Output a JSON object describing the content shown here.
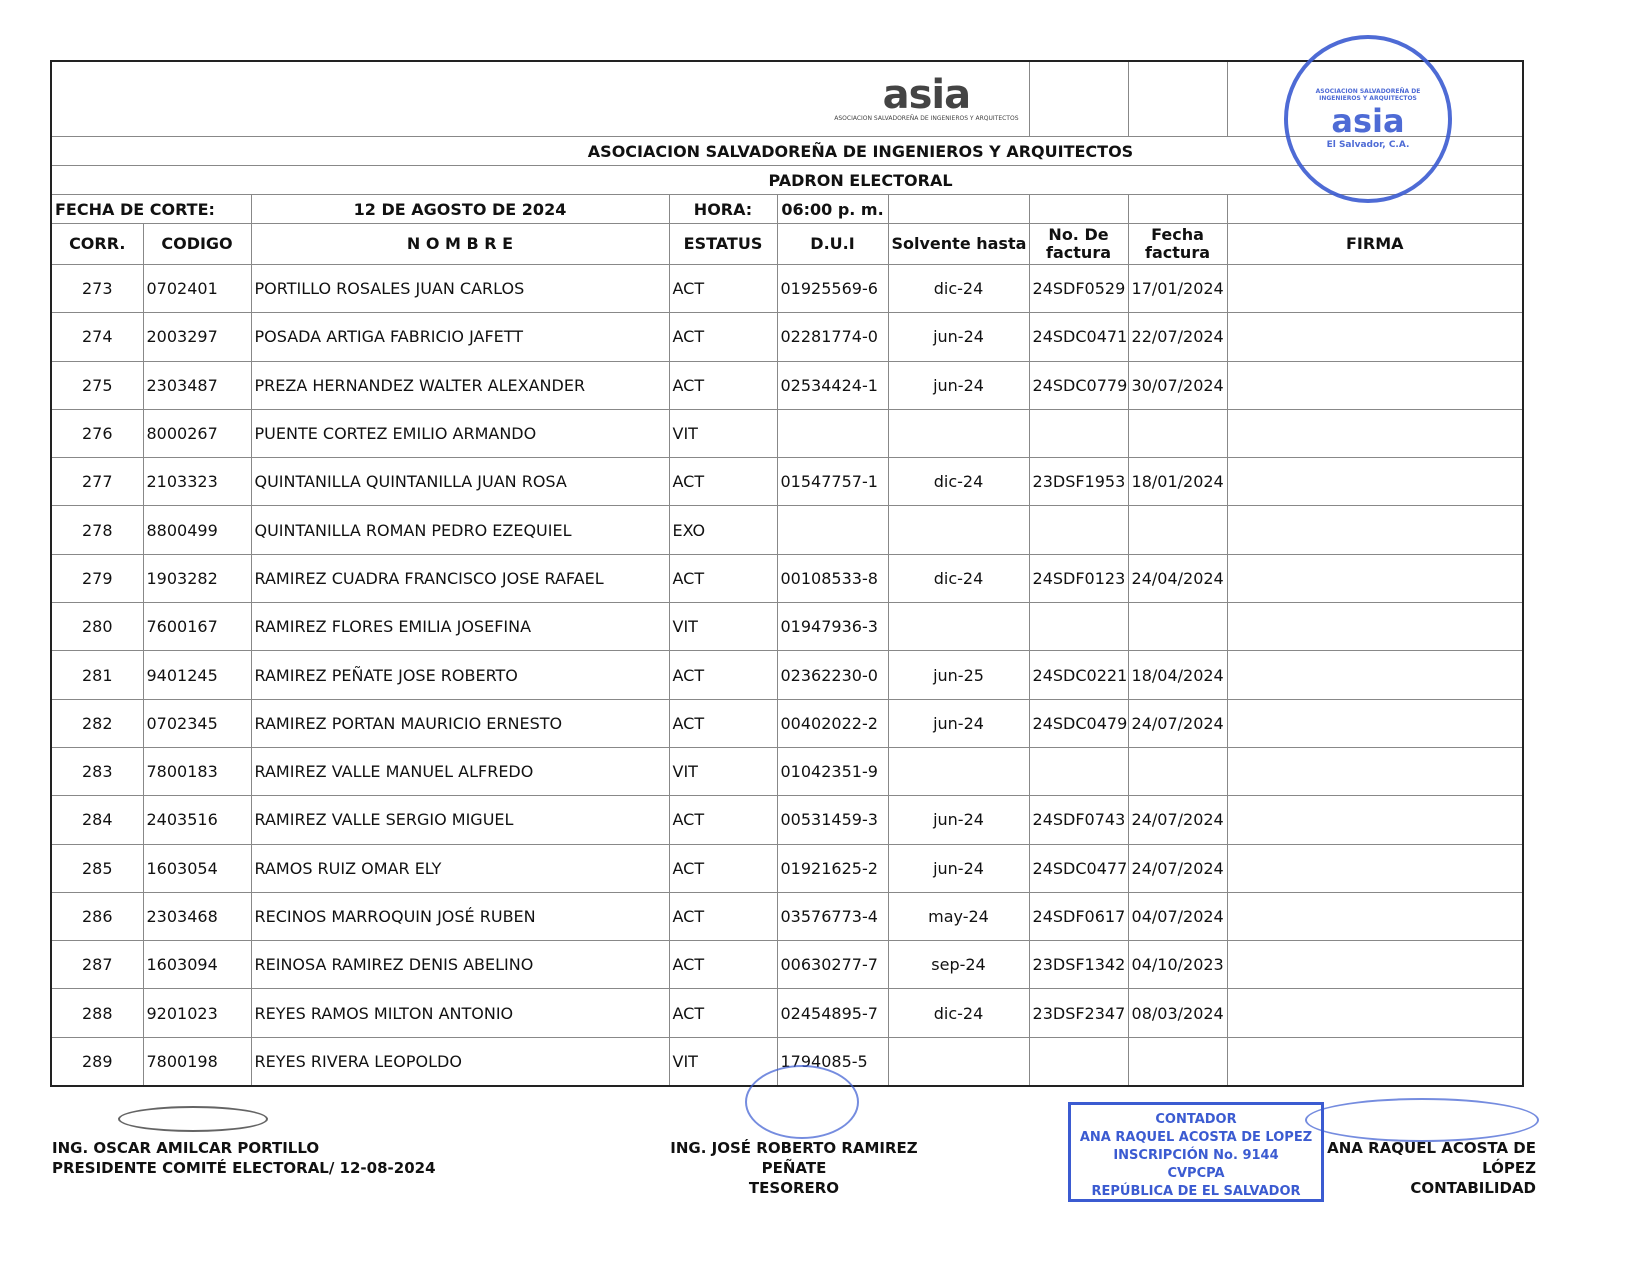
{
  "logo": {
    "word": "asia",
    "subtitle": "ASOCIACION SALVADOREÑA DE INGENIEROS Y ARQUITECTOS"
  },
  "stamp": {
    "ring": "ASOCIACION SALVADOREÑA DE INGENIEROS Y ARQUITECTOS",
    "word": "asia",
    "bottom": "El Salvador, C.A."
  },
  "title": "ASOCIACION SALVADOREÑA DE INGENIEROS Y ARQUITECTOS",
  "subtitle": "PADRON ELECTORAL",
  "fecha_label": "FECHA DE CORTE:",
  "fecha_value": "12 DE AGOSTO DE 2024",
  "hora_label": "HORA:",
  "hora_value": "06:00 p. m.",
  "headers": [
    "CORR.",
    "CODIGO",
    "N O M B R E",
    "ESTATUS",
    "D.U.I",
    "Solvente hasta",
    "No. De factura",
    "Fecha factura",
    "FIRMA"
  ],
  "rows": [
    [
      "273",
      "0702401",
      "PORTILLO ROSALES JUAN CARLOS",
      "ACT",
      "01925569-6",
      "dic-24",
      "24SDF0529",
      "17/01/2024",
      ""
    ],
    [
      "274",
      "2003297",
      "POSADA ARTIGA FABRICIO JAFETT",
      "ACT",
      "02281774-0",
      "jun-24",
      "24SDC0471",
      "22/07/2024",
      ""
    ],
    [
      "275",
      "2303487",
      "PREZA HERNANDEZ WALTER ALEXANDER",
      "ACT",
      "02534424-1",
      "jun-24",
      "24SDC0779",
      "30/07/2024",
      ""
    ],
    [
      "276",
      "8000267",
      "PUENTE CORTEZ EMILIO ARMANDO",
      "VIT",
      "",
      "",
      "",
      "",
      ""
    ],
    [
      "277",
      "2103323",
      "QUINTANILLA QUINTANILLA JUAN ROSA",
      "ACT",
      "01547757-1",
      "dic-24",
      "23DSF1953",
      "18/01/2024",
      ""
    ],
    [
      "278",
      "8800499",
      "QUINTANILLA ROMAN PEDRO EZEQUIEL",
      "EXO",
      "",
      "",
      "",
      "",
      ""
    ],
    [
      "279",
      "1903282",
      "RAMIREZ CUADRA FRANCISCO JOSE RAFAEL",
      "ACT",
      "00108533-8",
      "dic-24",
      "24SDF0123",
      "24/04/2024",
      ""
    ],
    [
      "280",
      "7600167",
      "RAMIREZ FLORES EMILIA JOSEFINA",
      "VIT",
      "01947936-3",
      "",
      "",
      "",
      ""
    ],
    [
      "281",
      "9401245",
      "RAMIREZ PEÑATE JOSE ROBERTO",
      "ACT",
      "02362230-0",
      "jun-25",
      "24SDC0221",
      "18/04/2024",
      ""
    ],
    [
      "282",
      "0702345",
      "RAMIREZ PORTAN MAURICIO ERNESTO",
      "ACT",
      "00402022-2",
      "jun-24",
      "24SDC0479",
      "24/07/2024",
      ""
    ],
    [
      "283",
      "7800183",
      "RAMIREZ VALLE MANUEL ALFREDO",
      "VIT",
      "01042351-9",
      "",
      "",
      "",
      ""
    ],
    [
      "284",
      "2403516",
      "RAMIREZ VALLE SERGIO MIGUEL",
      "ACT",
      "00531459-3",
      "jun-24",
      "24SDF0743",
      "24/07/2024",
      ""
    ],
    [
      "285",
      "1603054",
      "RAMOS RUIZ OMAR ELY",
      "ACT",
      "01921625-2",
      "jun-24",
      "24SDC0477",
      "24/07/2024",
      ""
    ],
    [
      "286",
      "2303468",
      "RECINOS MARROQUIN JOSÉ RUBEN",
      "ACT",
      "03576773-4",
      "may-24",
      "24SDF0617",
      "04/07/2024",
      ""
    ],
    [
      "287",
      "1603094",
      "REINOSA RAMIREZ DENIS ABELINO",
      "ACT",
      "00630277-7",
      "sep-24",
      "23DSF1342",
      "04/10/2023",
      ""
    ],
    [
      "288",
      "9201023",
      "REYES RAMOS MILTON ANTONIO",
      "ACT",
      "02454895-7",
      "dic-24",
      "23DSF2347",
      "08/03/2024",
      ""
    ],
    [
      "289",
      "7800198",
      "REYES RIVERA LEOPOLDO",
      "VIT",
      "1794085-5",
      "",
      "",
      "",
      ""
    ]
  ],
  "signatures": [
    {
      "name": "ING. OSCAR AMILCAR PORTILLO",
      "role": "PRESIDENTE COMITÉ ELECTORAL/ 12-08-2024"
    },
    {
      "name": "ING. JOSÉ ROBERTO RAMIREZ PEÑATE",
      "role": "TESORERO"
    },
    {
      "name": "ANA RAQUEL ACOSTA DE LÓPEZ",
      "role": "CONTABILIDAD"
    }
  ],
  "contador_stamp": [
    "CONTADOR",
    "ANA RAQUEL ACOSTA DE LOPEZ",
    "INSCRIPCIÓN No. 9144",
    "CVPCPA",
    "REPÚBLICA DE EL SALVADOR"
  ],
  "colors": {
    "stamp": "#3b5bd1",
    "ink": "#111111"
  }
}
